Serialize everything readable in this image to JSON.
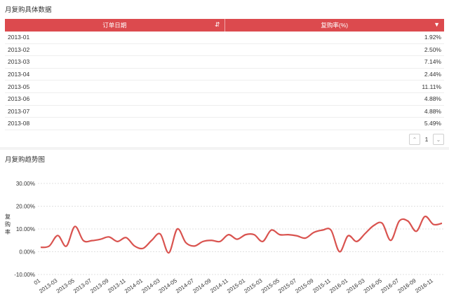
{
  "table_panel": {
    "title": "月复购具体数据",
    "columns": [
      "订单日期",
      "复购率(%)"
    ],
    "rows": [
      [
        "2013-01",
        "1.92%"
      ],
      [
        "2013-02",
        "2.50%"
      ],
      [
        "2013-03",
        "7.14%"
      ],
      [
        "2013-04",
        "2.44%"
      ],
      [
        "2013-05",
        "11.11%"
      ],
      [
        "2013-06",
        "4.88%"
      ],
      [
        "2013-07",
        "4.88%"
      ],
      [
        "2013-08",
        "5.49%"
      ]
    ],
    "pager": {
      "current_page": "1"
    },
    "icons": {
      "sort": "sort-icon",
      "filter": "filter-dropdown-icon"
    },
    "header_color": "#dc4a4e"
  },
  "chart_panel": {
    "title": "月复购趋势图",
    "ylabel": "复购率"
  },
  "chart_data": {
    "type": "line",
    "ylim": [
      -10,
      30
    ],
    "yticks": [
      "-10.00%",
      "0.00%",
      "10.00%",
      "20.00%",
      "30.00%"
    ],
    "ytick_values": [
      -10,
      0,
      10,
      20,
      30
    ],
    "grid": true,
    "line_color": "#d9534f",
    "x_tick_labels": [
      "01",
      "2013-03",
      "2013-05",
      "2013-07",
      "2013-09",
      "2013-11",
      "2014-01",
      "2014-03",
      "2014-05",
      "2014-07",
      "2014-09",
      "2014-11",
      "2015-01",
      "2015-03",
      "2015-05",
      "2015-07",
      "2015-09",
      "2015-11",
      "2016-01",
      "2016-03",
      "2016-05",
      "2016-07",
      "2016-09",
      "2016-11"
    ],
    "x": [
      "2013-01",
      "2013-02",
      "2013-03",
      "2013-04",
      "2013-05",
      "2013-06",
      "2013-07",
      "2013-08",
      "2013-09",
      "2013-10",
      "2013-11",
      "2013-12",
      "2014-01",
      "2014-02",
      "2014-03",
      "2014-04",
      "2014-05",
      "2014-06",
      "2014-07",
      "2014-08",
      "2014-09",
      "2014-10",
      "2014-11",
      "2014-12",
      "2015-01",
      "2015-02",
      "2015-03",
      "2015-04",
      "2015-05",
      "2015-06",
      "2015-07",
      "2015-08",
      "2015-09",
      "2015-10",
      "2015-11",
      "2015-12",
      "2016-01",
      "2016-02",
      "2016-03",
      "2016-04",
      "2016-05",
      "2016-06",
      "2016-07",
      "2016-08",
      "2016-09",
      "2016-10",
      "2016-11",
      "2016-12"
    ],
    "values": [
      1.92,
      2.5,
      7.14,
      2.44,
      11.11,
      4.88,
      4.88,
      5.49,
      6.5,
      4.5,
      6.2,
      2.5,
      1.5,
      5.0,
      7.8,
      -0.5,
      10.0,
      4.0,
      2.5,
      4.5,
      5.0,
      4.5,
      7.5,
      5.5,
      7.5,
      7.5,
      4.5,
      9.5,
      7.5,
      7.5,
      7.0,
      6.0,
      8.5,
      9.5,
      9.5,
      0.0,
      7.0,
      4.5,
      8.0,
      11.5,
      12.5,
      5.0,
      13.5,
      13.5,
      9.0,
      15.5,
      12.0,
      12.5
    ]
  }
}
